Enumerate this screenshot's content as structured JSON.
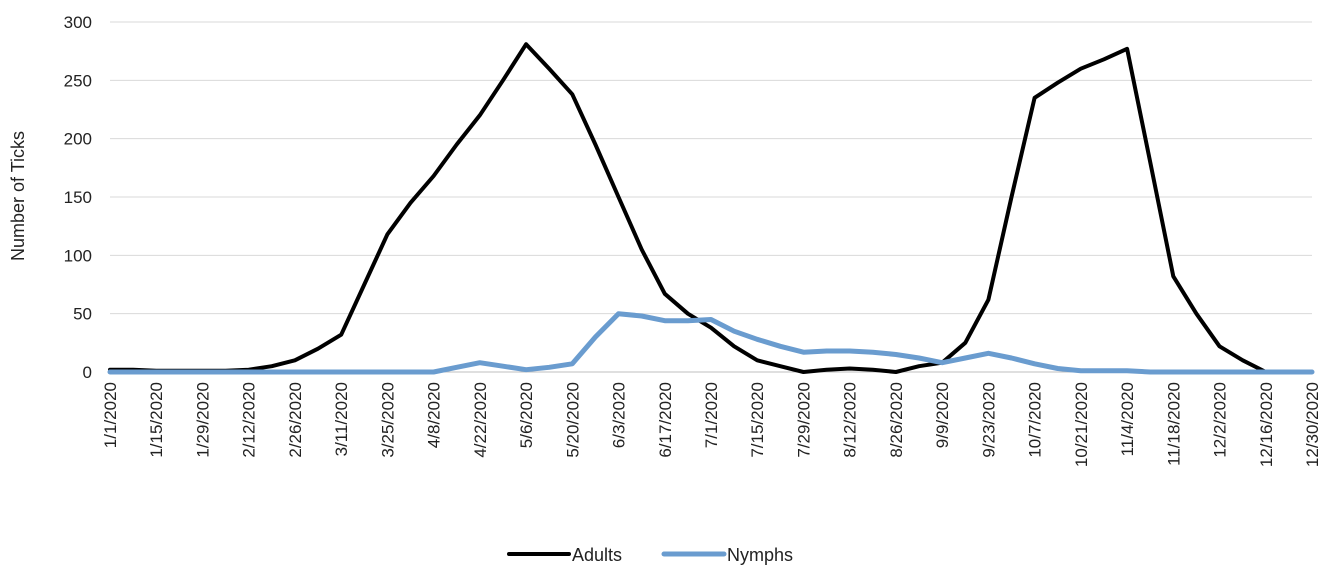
{
  "chart_data": {
    "type": "line",
    "title": "",
    "xlabel": "",
    "ylabel": "Number of Ticks",
    "ylim": [
      0,
      300
    ],
    "yticks": [
      0,
      50,
      100,
      150,
      200,
      250,
      300
    ],
    "grid": true,
    "legend_position": "bottom-center",
    "x": [
      "1/1/2020",
      "1/8/2020",
      "1/15/2020",
      "1/22/2020",
      "1/29/2020",
      "2/5/2020",
      "2/12/2020",
      "2/19/2020",
      "2/26/2020",
      "3/4/2020",
      "3/11/2020",
      "3/18/2020",
      "3/25/2020",
      "4/1/2020",
      "4/8/2020",
      "4/15/2020",
      "4/22/2020",
      "4/29/2020",
      "5/6/2020",
      "5/13/2020",
      "5/20/2020",
      "5/27/2020",
      "6/3/2020",
      "6/10/2020",
      "6/17/2020",
      "6/24/2020",
      "7/1/2020",
      "7/8/2020",
      "7/15/2020",
      "7/22/2020",
      "7/29/2020",
      "8/5/2020",
      "8/12/2020",
      "8/19/2020",
      "8/26/2020",
      "9/2/2020",
      "9/9/2020",
      "9/16/2020",
      "9/23/2020",
      "9/30/2020",
      "10/7/2020",
      "10/14/2020",
      "10/21/2020",
      "10/28/2020",
      "11/4/2020",
      "11/11/2020",
      "11/18/2020",
      "11/25/2020",
      "12/2/2020",
      "12/9/2020",
      "12/16/2020",
      "12/23/2020",
      "12/30/2020"
    ],
    "x_tick_labels": [
      "1/1/2020",
      "1/15/2020",
      "1/29/2020",
      "2/12/2020",
      "2/26/2020",
      "3/11/2020",
      "3/25/2020",
      "4/8/2020",
      "4/22/2020",
      "5/6/2020",
      "5/20/2020",
      "6/3/2020",
      "6/17/2020",
      "7/1/2020",
      "7/15/2020",
      "7/29/2020",
      "8/12/2020",
      "8/26/2020",
      "9/9/2020",
      "9/23/2020",
      "10/7/2020",
      "10/21/2020",
      "11/4/2020",
      "11/18/2020",
      "12/2/2020",
      "12/16/2020",
      "12/30/2020"
    ],
    "series": [
      {
        "name": "Adults",
        "color": "#000000",
        "values": [
          2,
          2,
          1,
          1,
          1,
          1,
          2,
          5,
          10,
          20,
          32,
          75,
          118,
          145,
          168,
          195,
          220,
          250,
          281,
          260,
          238,
          195,
          150,
          105,
          67,
          50,
          38,
          22,
          10,
          5,
          0,
          2,
          3,
          2,
          0,
          5,
          8,
          25,
          62,
          150,
          235,
          248,
          260,
          268,
          277,
          180,
          82,
          50,
          22,
          10,
          0,
          0,
          0
        ]
      },
      {
        "name": "Nymphs",
        "color": "#6a9ccf",
        "values": [
          0,
          0,
          0,
          0,
          0,
          0,
          0,
          0,
          0,
          0,
          0,
          0,
          0,
          0,
          0,
          4,
          8,
          5,
          2,
          4,
          7,
          30,
          50,
          48,
          44,
          44,
          45,
          35,
          28,
          22,
          17,
          18,
          18,
          17,
          15,
          12,
          8,
          12,
          16,
          12,
          7,
          3,
          1,
          1,
          1,
          0,
          0,
          0,
          0,
          0,
          0,
          0,
          0
        ]
      }
    ]
  }
}
